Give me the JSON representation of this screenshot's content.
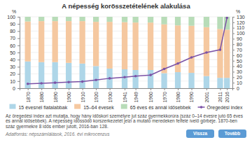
{
  "chart_data": {
    "type": "bar",
    "stacked": true,
    "title": "A népesség korösszetételének alakulása",
    "x": [
      1870,
      1880,
      1890,
      1900,
      1910,
      1920,
      1930,
      1941,
      1949,
      1960,
      1970,
      1980,
      1990,
      2001,
      2011,
      2016
    ],
    "xlim": [
      1864,
      2020
    ],
    "xticks": [
      1870,
      1880,
      1890,
      1900,
      1910,
      1920,
      1930,
      1941,
      1949,
      1960,
      1970,
      1980,
      1990,
      2001,
      2011,
      2016
    ],
    "ylim": [
      0,
      100
    ],
    "yticks": [
      0,
      10,
      20,
      30,
      40,
      50,
      60,
      70,
      80,
      90,
      100
    ],
    "y2lim": [
      0,
      130
    ],
    "y2ticks": [
      0,
      10,
      20,
      30,
      40,
      50,
      60,
      70,
      80,
      90,
      100,
      110,
      120,
      130
    ],
    "y_label": "%",
    "y2_label": "%",
    "grid": true,
    "legend": "bottom",
    "series": [
      {
        "name": "15 évesnél fiatalabbak",
        "color": "#aed6e8",
        "values": [
          37.5,
          36.5,
          36.5,
          35.5,
          34.5,
          31.0,
          27.5,
          26.5,
          25.5,
          25.5,
          21.0,
          22.5,
          21.5,
          17.0,
          14.5,
          14.5
        ]
      },
      {
        "name": "15–64 évesek",
        "color": "#f5c8a0",
        "values": [
          56.0,
          57.5,
          57.5,
          58.5,
          59.5,
          62.0,
          65.5,
          66.0,
          66.5,
          66.5,
          68.5,
          65.5,
          66.0,
          68.5,
          68.5,
          67.5
        ]
      },
      {
        "name": "65 éves és annál idősebbek",
        "color": "#b8dcb8",
        "values": [
          6.5,
          6.0,
          6.0,
          6.0,
          6.0,
          7.0,
          7.0,
          7.5,
          8.0,
          8.0,
          10.5,
          12.0,
          12.5,
          14.5,
          17.0,
          18.0
        ]
      },
      {
        "name": "Öregedési index",
        "type": "line",
        "axis": "y2",
        "color": "#7b52a6",
        "marker": "circle",
        "values": [
          8,
          9,
          10,
          11,
          12,
          15,
          18,
          20,
          22,
          24,
          35,
          45,
          56,
          65,
          70,
          128
        ]
      }
    ],
    "note": "Az öregedési index azt mutatja, hogy hány időskori személyre jut száz gyermekkorúra (száz 0–14 évesre jutó 65 éves és annál idősebbek). A népesség időssödő korszerkezetét jelzi a mutató meredeken felfelé ívelő görbéje. 1870-ben száz gyermekre 8 idős ember jutott, 2016-ban 128.",
    "source": "Adatforrás: népszámlálások, 2016. évi mikrocenzus",
    "buttons": [
      "Vissza",
      "Tovább"
    ]
  }
}
